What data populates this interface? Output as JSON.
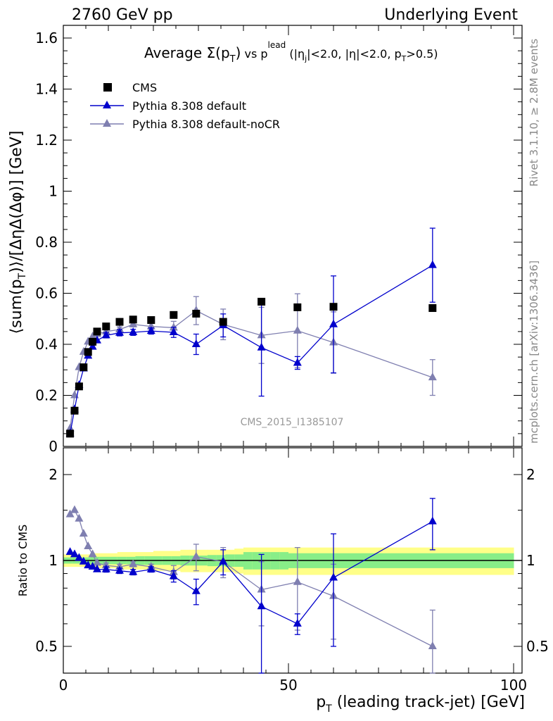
{
  "header": {
    "left": "2760 GeV pp",
    "right": "Underlying Event"
  },
  "side_labels": {
    "rivet": "Rivet 3.1.10, ≥ 2.8M events",
    "mcplots": "mcplots.cern.ch [arXiv:1306.3436]"
  },
  "watermark": "CMS_2015_I1385107",
  "chart_data": [
    {
      "type": "scatter",
      "title": "Average Σ(pT) vs pT^lead (|ηj|<2.0, |η|<2.0, pT>0.5)",
      "title_parts": {
        "prefix": "Average ",
        "sigma": "Σ(p",
        "sub_t": "T",
        "close": ")",
        "vs": " vs p",
        "sup_lead": "lead",
        "cuts_a": " (|η",
        "sub_j": "j",
        "cuts_b": "|<2.0, |η|<2.0, p",
        "sub_t2": "T",
        "cuts_c": ">0.5)"
      },
      "xlabel": "pT (leading track-jet) [GeV]",
      "xlabel_parts": {
        "main": "p",
        "sub": "T",
        "rest": " (leading track-jet) [GeV]"
      },
      "ylabel": "⟨sum(pT)⟩/[ΔηΔ(Δφ)] [GeV]",
      "ylabel_parts": {
        "pre": "⟨sum(p",
        "sub": "T",
        "post": ")⟩/[ΔηΔ(Δφ)] [GeV]"
      },
      "xlim": [
        0,
        100
      ],
      "ylim": [
        0,
        1.65
      ],
      "yticks": [
        "0",
        "0.2",
        "0.4",
        "0.6",
        "0.8",
        "1",
        "1.2",
        "1.4",
        "1.6"
      ],
      "legend_position": "top-left",
      "series": [
        {
          "name": "CMS",
          "color": "#000000",
          "marker": "square",
          "x": [
            1.5,
            2.5,
            3.5,
            4.5,
            5.5,
            6.5,
            7.5,
            9.5,
            12.5,
            15.5,
            19.5,
            24.5,
            29.5,
            35.5,
            44.0,
            52.0,
            60.0,
            82.0
          ],
          "y": [
            0.05,
            0.14,
            0.235,
            0.31,
            0.37,
            0.41,
            0.45,
            0.47,
            0.488,
            0.497,
            0.495,
            0.515,
            0.52,
            0.488,
            0.567,
            0.545,
            0.547,
            0.542
          ]
        },
        {
          "name": "Pythia 8.308 default",
          "color": "#0000cc",
          "marker": "triangle",
          "x": [
            1.5,
            2.5,
            3.5,
            4.5,
            5.5,
            6.5,
            7.5,
            9.5,
            12.5,
            15.5,
            19.5,
            24.5,
            29.5,
            35.5,
            44.0,
            52.0,
            60.0,
            82.0
          ],
          "y": [
            0.05,
            0.145,
            0.24,
            0.305,
            0.355,
            0.39,
            0.415,
            0.435,
            0.445,
            0.447,
            0.452,
            0.447,
            0.4,
            0.474,
            0.387,
            0.327,
            0.478,
            0.71
          ],
          "err": [
            0,
            0,
            0,
            0,
            0,
            0,
            0,
            0.01,
            0.012,
            0.012,
            0.012,
            0.02,
            0.04,
            0.045,
            0.19,
            0.025,
            0.19,
            0.145
          ]
        },
        {
          "name": "Pythia 8.308 default-noCR",
          "color": "#7f7fb0",
          "marker": "triangle",
          "x": [
            1.5,
            2.5,
            3.5,
            4.5,
            5.5,
            6.5,
            7.5,
            9.5,
            12.5,
            15.5,
            19.5,
            24.5,
            29.5,
            35.5,
            44.0,
            52.0,
            60.0,
            82.0
          ],
          "y": [
            0.07,
            0.2,
            0.31,
            0.37,
            0.41,
            0.43,
            0.44,
            0.45,
            0.458,
            0.478,
            0.47,
            0.465,
            0.532,
            0.478,
            0.435,
            0.453,
            0.407,
            0.27
          ],
          "err": [
            0,
            0,
            0,
            0,
            0,
            0,
            0,
            0.01,
            0.01,
            0.01,
            0.012,
            0.025,
            0.055,
            0.06,
            0.11,
            0.145,
            0.12,
            0.07
          ]
        }
      ]
    },
    {
      "type": "scatter",
      "title": "",
      "ylabel": "Ratio to CMS",
      "xlim": [
        0,
        100
      ],
      "ylim": [
        0.35,
        2.3
      ],
      "xticks": [
        "0",
        "50",
        "100"
      ],
      "yticks": [
        "0.5",
        "1",
        "2"
      ],
      "bands": [
        {
          "x": [
            0,
            2,
            4,
            6,
            8,
            10,
            12,
            14,
            16,
            18,
            20,
            22,
            24,
            26,
            28,
            30,
            32,
            34,
            36,
            38,
            40,
            42,
            44,
            46,
            48,
            50,
            55,
            60,
            70,
            80,
            90,
            100
          ],
          "yellow_halfwidth": [
            0.05,
            0.05,
            0.05,
            0.06,
            0.06,
            0.06,
            0.07,
            0.07,
            0.07,
            0.07,
            0.08,
            0.08,
            0.08,
            0.09,
            0.09,
            0.09,
            0.09,
            0.09,
            0.09,
            0.1,
            0.11,
            0.11,
            0.11,
            0.11,
            0.11,
            0.11,
            0.11,
            0.11,
            0.11,
            0.11,
            0.11,
            0.11
          ],
          "green_halfwidth": [
            0.025,
            0.025,
            0.025,
            0.03,
            0.03,
            0.03,
            0.03,
            0.03,
            0.035,
            0.035,
            0.035,
            0.035,
            0.035,
            0.04,
            0.04,
            0.04,
            0.045,
            0.045,
            0.05,
            0.05,
            0.07,
            0.07,
            0.07,
            0.07,
            0.07,
            0.06,
            0.06,
            0.06,
            0.06,
            0.06,
            0.06,
            0.06
          ]
        }
      ],
      "series": [
        {
          "name": "Pythia 8.308 default",
          "color": "#0000cc",
          "x": [
            1.5,
            2.5,
            3.5,
            4.5,
            5.5,
            6.5,
            7.5,
            9.5,
            12.5,
            15.5,
            19.5,
            24.5,
            29.5,
            35.5,
            44.0,
            52.0,
            60.0,
            82.0
          ],
          "y": [
            1.07,
            1.05,
            1.02,
            0.99,
            0.96,
            0.95,
            0.93,
            0.93,
            0.92,
            0.91,
            0.93,
            0.88,
            0.78,
            0.99,
            0.69,
            0.6,
            0.87,
            1.37
          ],
          "err": [
            0,
            0,
            0,
            0,
            0,
            0,
            0,
            0.02,
            0.02,
            0.02,
            0.02,
            0.04,
            0.08,
            0.1,
            0.36,
            0.05,
            0.37,
            0.28
          ]
        },
        {
          "name": "Pythia 8.308 default-noCR",
          "color": "#7f7fb0",
          "x": [
            1.5,
            2.5,
            3.5,
            4.5,
            5.5,
            6.5,
            7.5,
            9.5,
            12.5,
            15.5,
            19.5,
            24.5,
            29.5,
            35.5,
            44.0,
            52.0,
            60.0,
            82.0
          ],
          "y": [
            1.45,
            1.5,
            1.4,
            1.24,
            1.12,
            1.05,
            0.98,
            0.96,
            0.95,
            0.97,
            0.95,
            0.91,
            1.03,
            0.99,
            0.79,
            0.84,
            0.75,
            0.5
          ],
          "err": [
            0,
            0,
            0,
            0,
            0,
            0,
            0,
            0.02,
            0.02,
            0.02,
            0.02,
            0.05,
            0.11,
            0.12,
            0.2,
            0.27,
            0.22,
            0.17
          ]
        }
      ]
    }
  ]
}
